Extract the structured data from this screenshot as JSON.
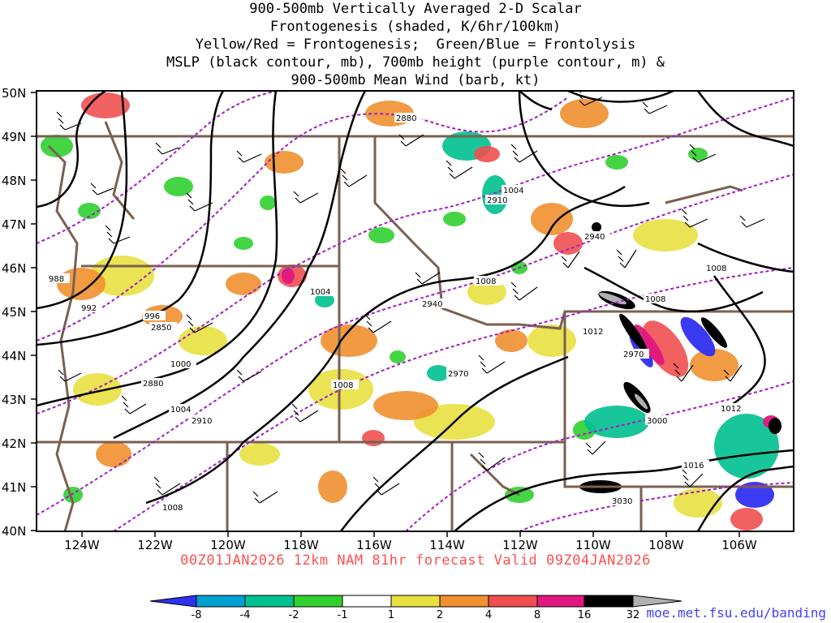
{
  "title_lines": [
    "900-500mb Vertically Averaged 2-D Scalar",
    "Frontogenesis (shaded, K/6hr/100km)",
    "Yellow/Red = Frontogenesis;  Green/Blue = Frontolysis",
    "MSLP (black contour, mb), 700mb height (purple contour, m) &",
    "900-500mb Mean Wind (barb, kt)"
  ],
  "subtitle": "00Z01JAN2026 12km NAM 81hr forecast Valid 09Z04JAN2026",
  "url": "moe.met.fsu.edu/banding",
  "lat_labels": [
    "50N",
    "49N",
    "48N",
    "47N",
    "46N",
    "45N",
    "44N",
    "43N",
    "42N",
    "41N",
    "40N"
  ],
  "lon_labels": [
    "124W",
    "122W",
    "120W",
    "118W",
    "116W",
    "114W",
    "112W",
    "110W",
    "108W",
    "106W"
  ],
  "colorbar": {
    "ticks": [
      "-8",
      "-4",
      "-2",
      "-1",
      "1",
      "2",
      "4",
      "8",
      "16",
      "32"
    ],
    "colors": [
      "#3030f0",
      "#00a0d0",
      "#00c090",
      "#30d030",
      "#ffffff",
      "#e8e040",
      "#f09030",
      "#f05050",
      "#e01880",
      "#000000",
      "#b0b0b0"
    ]
  },
  "mslp_labels": [
    "988",
    "992",
    "996",
    "1000",
    "1004",
    "1008",
    "1004",
    "1008",
    "1004",
    "1008",
    "1012",
    "1008",
    "1012",
    "1016",
    "1008"
  ],
  "height_labels": [
    "2850",
    "2880",
    "2910",
    "2940",
    "2970",
    "2880",
    "2910",
    "2940",
    "2970",
    "3000",
    "3030"
  ],
  "colors": {
    "mslp": "#000000",
    "height": "#a020c0",
    "state_lines": "#7a6050",
    "subtitle": "#ff5050",
    "url": "#4040ff"
  }
}
